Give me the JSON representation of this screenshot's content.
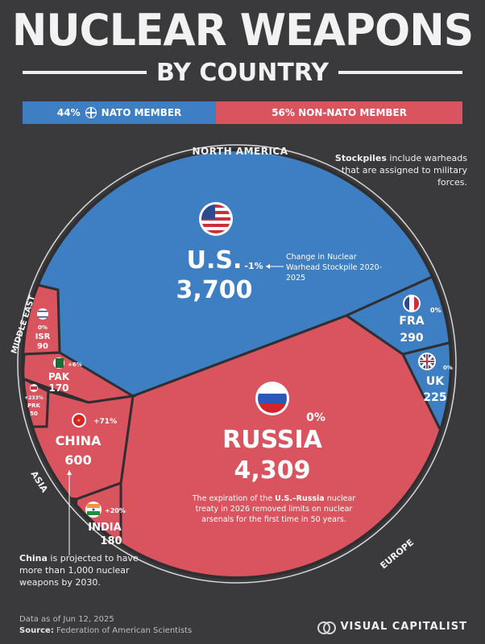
{
  "header": {
    "title": "NUCLEAR WEAPONS",
    "subtitle": "BY COUNTRY"
  },
  "legend": {
    "nato_label": "44% ⊕ NATO MEMBER",
    "nato_pct": "44%",
    "nato_text": "NATO MEMBER",
    "non_nato_label": "56% NON-NATO MEMBER",
    "nato_color": "#3e7ec2",
    "non_nato_color": "#d9545e"
  },
  "chart_data": {
    "type": "voronoi-treemap",
    "regions": [
      "NORTH AMERICA",
      "MIDDLE EAST",
      "ASIA",
      "EUROPE"
    ],
    "countries": [
      {
        "name": "U.S.",
        "value": 3700,
        "display_value": "3,700",
        "change": "-1%",
        "nato": true,
        "region": "NORTH AMERICA",
        "flag": "us-flag"
      },
      {
        "name": "RUSSIA",
        "value": 4309,
        "display_value": "4,309",
        "change": "0%",
        "nato": false,
        "region": "EUROPE",
        "flag": "russia-flag"
      },
      {
        "name": "FRA",
        "value": 290,
        "display_value": "290",
        "change": "0%",
        "nato": true,
        "region": "EUROPE",
        "flag": "france-flag"
      },
      {
        "name": "UK",
        "value": 225,
        "display_value": "225",
        "change": "0%",
        "nato": true,
        "region": "EUROPE",
        "flag": "uk-flag"
      },
      {
        "name": "CHINA",
        "value": 600,
        "display_value": "600",
        "change": "+71%",
        "nato": false,
        "region": "ASIA",
        "flag": "china-flag"
      },
      {
        "name": "INDIA",
        "value": 180,
        "display_value": "180",
        "change": "+20%",
        "nato": false,
        "region": "ASIA",
        "flag": "india-flag"
      },
      {
        "name": "PAK",
        "value": 170,
        "display_value": "170",
        "change": "+6%",
        "nato": false,
        "region": "ASIA",
        "flag": "pakistan-flag"
      },
      {
        "name": "PRK",
        "value": 50,
        "display_value": "50",
        "change": "+233%",
        "nato": false,
        "region": "ASIA",
        "flag": "north-korea-flag"
      },
      {
        "name": "ISR",
        "value": 90,
        "display_value": "90",
        "change": "0%",
        "nato": false,
        "region": "MIDDLE EAST",
        "flag": "israel-flag"
      }
    ],
    "annotations": {
      "change_note": "Change in Nuclear Warhead Stockpile 2020-2025",
      "russia_note_part1": "The expiration of the ",
      "russia_note_bold": "U.S.–Russia",
      "russia_note_part2": " nuclear treaty in 2026 removed limits on nuclear arsenals for the first time in 50 years."
    }
  },
  "notes": {
    "stockpiles_bold": "Stockpiles",
    "stockpiles_text": " include warheads that are assigned to military forces.",
    "china_bold": "China",
    "china_text": " is projected to have more than 1,000 nuclear weapons by 2030."
  },
  "footer": {
    "date": "Data as of Jun 12, 2025",
    "source_label": "Source:",
    "source_text": " Federation of American Scientists",
    "brand": "VISUAL CAPITALIST"
  }
}
